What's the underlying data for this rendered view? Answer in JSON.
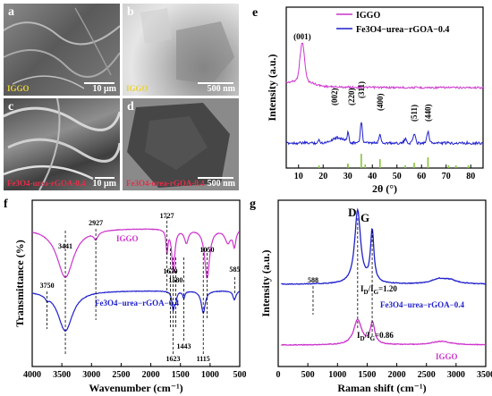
{
  "figure": {
    "panels": {
      "a": {
        "letter": "a",
        "label": "IGGO",
        "scale": "10 μm"
      },
      "b": {
        "letter": "b",
        "label": "IGGO",
        "scale": "500 nm"
      },
      "c": {
        "letter": "c",
        "label": "Fe3O4-urea-rGOA-0.4",
        "scale": "10 μm"
      },
      "d": {
        "letter": "d",
        "label": "Fe3O4-urea-rGOA-0.4",
        "scale": "500 nm"
      }
    },
    "colors": {
      "iggo": "#cc33cc",
      "fe3o4": "#1f1fcc",
      "ref": "#88c43a",
      "label_yellow": "#e8d23a",
      "label_red": "#e0304a"
    }
  },
  "chart_data": [
    {
      "id": "e",
      "type": "line",
      "letter": "e",
      "xlabel": "2θ (°)",
      "ylabel": "Intensity (a.u.)",
      "xlim": [
        5,
        85
      ],
      "xticks": [
        10,
        20,
        30,
        40,
        50,
        60,
        70,
        80
      ],
      "legend": [
        "IGGO",
        "Fe3O4−urea−rGOA−0.4"
      ],
      "legend_position": "top-right",
      "peaks_iggo": [
        {
          "x": 11.5,
          "label": "(001)"
        }
      ],
      "peaks_fe3o4": [
        {
          "x": 26.0,
          "label": "(002)"
        },
        {
          "x": 30.1,
          "label": "(220)"
        },
        {
          "x": 35.5,
          "label": "(311)"
        },
        {
          "x": 43.1,
          "label": "(400)"
        },
        {
          "x": 57.0,
          "label": "(511)"
        },
        {
          "x": 62.6,
          "label": "(440)"
        }
      ],
      "reference_lines": [
        18.3,
        30.1,
        35.5,
        37.1,
        43.1,
        53.4,
        57.0,
        62.6,
        71.0,
        74.0,
        79.0
      ]
    },
    {
      "id": "f",
      "type": "line",
      "letter": "f",
      "xlabel": "Wavenumber (cm⁻¹)",
      "ylabel": "Transmittance (%)",
      "xlim": [
        4000,
        500
      ],
      "xticks": [
        4000,
        3500,
        3000,
        2500,
        2000,
        1500,
        1000,
        500
      ],
      "series_labels": [
        "IGGO",
        "Fe3O4−urea−rGOA−0.4"
      ],
      "bands": [
        {
          "x": 3750,
          "label": "3750"
        },
        {
          "x": 3441,
          "label": "3441"
        },
        {
          "x": 2927,
          "label": "2927"
        },
        {
          "x": 1727,
          "label": "1727"
        },
        {
          "x": 1670,
          "label": "1670"
        },
        {
          "x": 1623,
          "label": "1623"
        },
        {
          "x": 1580,
          "label": "1580"
        },
        {
          "x": 1443,
          "label": "1443"
        },
        {
          "x": 1115,
          "label": "1115"
        },
        {
          "x": 1050,
          "label": "1050"
        },
        {
          "x": 585,
          "label": "585"
        }
      ]
    },
    {
      "id": "g",
      "type": "line",
      "letter": "g",
      "xlabel": "Raman shift  (cm⁻¹)",
      "ylabel": "Intensity (a.u.)",
      "xlim": [
        0,
        3500
      ],
      "xticks": [
        0,
        500,
        1000,
        1500,
        2000,
        2500,
        3000,
        3500
      ],
      "band_D": {
        "x": 1340,
        "label": "D"
      },
      "band_G": {
        "x": 1585,
        "label": "G"
      },
      "peak_588": {
        "x": 588,
        "label": "588"
      },
      "series": [
        {
          "name": "Fe3O4−urea−rGOA−0.4",
          "ratio_label": "I",
          "ratio_sub1": "D",
          "ratio_sep": "/I",
          "ratio_sub2": "G",
          "ratio_value": "=1.20"
        },
        {
          "name": "IGGO",
          "ratio_label": "I",
          "ratio_sub1": "D",
          "ratio_sep": "/I",
          "ratio_sub2": "G",
          "ratio_value": "=0.86"
        }
      ]
    }
  ]
}
